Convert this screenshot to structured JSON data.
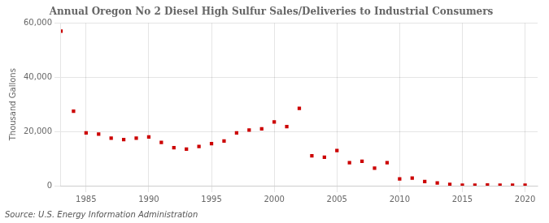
{
  "chart_data": {
    "type": "scatter",
    "title": "Annual Oregon No 2 Diesel High Sulfur Sales/Deliveries to Industrial Consumers",
    "ylabel": "Thousand Gallons",
    "annotations": [
      "Source: U.S. Energy Information Administration"
    ],
    "x": [
      1983,
      1984,
      1985,
      1986,
      1987,
      1988,
      1989,
      1990,
      1991,
      1992,
      1993,
      1994,
      1995,
      1996,
      1997,
      1998,
      1999,
      2000,
      2001,
      2002,
      2003,
      2004,
      2005,
      2006,
      2007,
      2008,
      2009,
      2010,
      2011,
      2012,
      2013,
      2014,
      2015,
      2016,
      2017,
      2018,
      2019,
      2020
    ],
    "values": [
      57000,
      27500,
      19500,
      19000,
      17500,
      17000,
      17500,
      18000,
      16000,
      14000,
      13500,
      14500,
      15500,
      16500,
      19500,
      20500,
      21000,
      23500,
      21800,
      28500,
      11000,
      10500,
      13000,
      8500,
      9000,
      6500,
      8500,
      2500,
      2800,
      1500,
      1000,
      500,
      200,
      200,
      300,
      200,
      200,
      200
    ],
    "color": "#cc0000",
    "marker": "square",
    "xlim": [
      1983,
      2021
    ],
    "xticks": [
      1985,
      1990,
      1995,
      2000,
      2005,
      2010,
      2015,
      2020
    ],
    "ylim": [
      0,
      60000
    ],
    "yticks": [
      0,
      {
        "value": 20000,
        "label": "20,000"
      },
      {
        "value": 40000,
        "label": "40,000"
      },
      {
        "value": 60000,
        "label": "60,000"
      }
    ],
    "grid": true
  }
}
